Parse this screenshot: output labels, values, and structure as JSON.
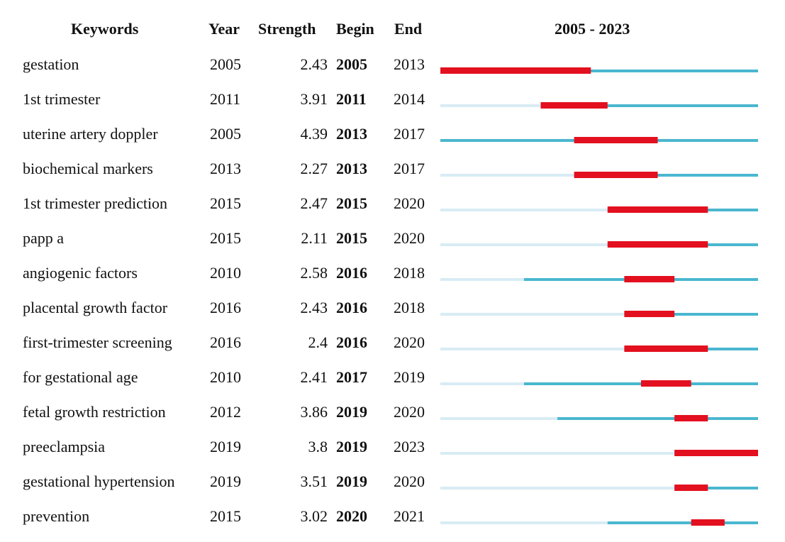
{
  "headers": {
    "keywords": "Keywords",
    "year": "Year",
    "strength": "Strength",
    "begin": "Begin",
    "end": "End",
    "range": "2005 - 2023"
  },
  "colors": {
    "burst": "#e3101f",
    "active": "#4ab7cf",
    "inactive": "#d8ecf4"
  },
  "chart_data": {
    "type": "table",
    "timeline": {
      "start": 2005,
      "end": 2023
    },
    "rows": [
      {
        "keyword": "gestation",
        "year": "2005",
        "strength": "2.43",
        "begin": "2005",
        "end": "2013"
      },
      {
        "keyword": "1st trimester",
        "year": "2011",
        "strength": "3.91",
        "begin": "2011",
        "end": "2014"
      },
      {
        "keyword": "uterine artery doppler",
        "year": "2005",
        "strength": "4.39",
        "begin": "2013",
        "end": "2017"
      },
      {
        "keyword": "biochemical markers",
        "year": "2013",
        "strength": "2.27",
        "begin": "2013",
        "end": "2017"
      },
      {
        "keyword": "1st trimester prediction",
        "year": "2015",
        "strength": "2.47",
        "begin": "2015",
        "end": "2020"
      },
      {
        "keyword": "papp a",
        "year": "2015",
        "strength": "2.11",
        "begin": "2015",
        "end": "2020"
      },
      {
        "keyword": "angiogenic factors",
        "year": "2010",
        "strength": "2.58",
        "begin": "2016",
        "end": "2018"
      },
      {
        "keyword": "placental growth factor",
        "year": "2016",
        "strength": "2.43",
        "begin": "2016",
        "end": "2018"
      },
      {
        "keyword": "first-trimester screening",
        "year": "2016",
        "strength": "2.4",
        "begin": "2016",
        "end": "2020"
      },
      {
        "keyword": "for gestational age",
        "year": "2010",
        "strength": "2.41",
        "begin": "2017",
        "end": "2019"
      },
      {
        "keyword": "fetal growth restriction",
        "year": "2012",
        "strength": "3.86",
        "begin": "2019",
        "end": "2020"
      },
      {
        "keyword": "preeclampsia",
        "year": "2019",
        "strength": "3.8",
        "begin": "2019",
        "end": "2023"
      },
      {
        "keyword": "gestational hypertension",
        "year": "2019",
        "strength": "3.51",
        "begin": "2019",
        "end": "2020"
      },
      {
        "keyword": "prevention",
        "year": "2015",
        "strength": "3.02",
        "begin": "2020",
        "end": "2021"
      }
    ]
  }
}
